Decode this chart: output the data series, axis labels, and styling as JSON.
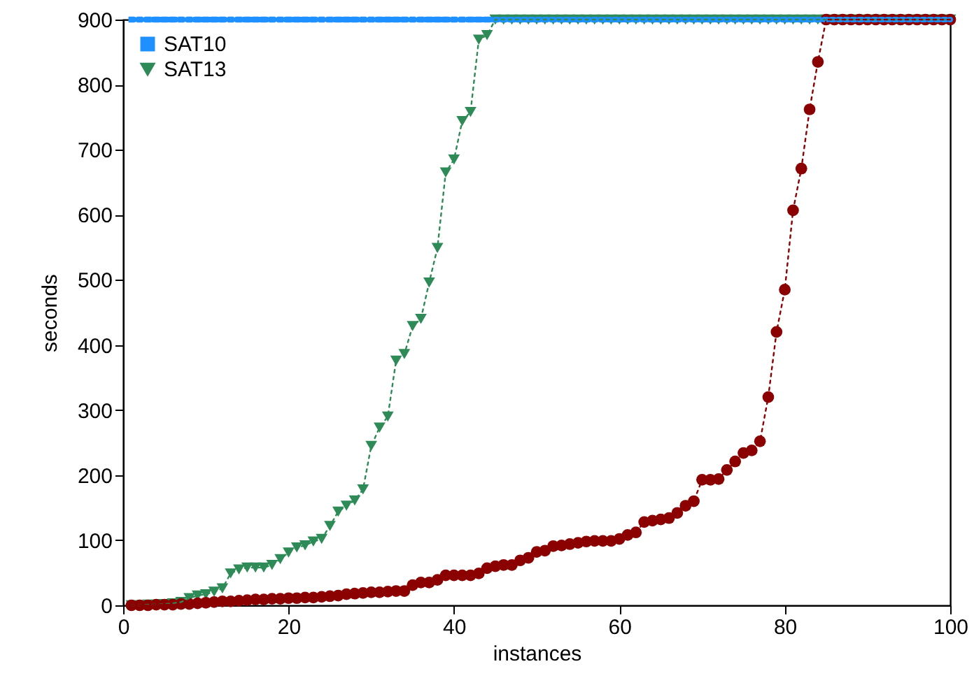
{
  "chart_data": {
    "type": "line",
    "xlabel": "instances",
    "ylabel": "seconds",
    "x": [
      1,
      2,
      3,
      4,
      5,
      6,
      7,
      8,
      9,
      10,
      11,
      12,
      13,
      14,
      15,
      16,
      17,
      18,
      19,
      20,
      21,
      22,
      23,
      24,
      25,
      26,
      27,
      28,
      29,
      30,
      31,
      32,
      33,
      34,
      35,
      36,
      37,
      38,
      39,
      40,
      41,
      42,
      43,
      44,
      45,
      46,
      47,
      48,
      49,
      50,
      51,
      52,
      53,
      54,
      55,
      56,
      57,
      58,
      59,
      60,
      61,
      62,
      63,
      64,
      65,
      66,
      67,
      68,
      69,
      70,
      71,
      72,
      73,
      74,
      75,
      76,
      77,
      78,
      79,
      80,
      81,
      82,
      83,
      84,
      85,
      86,
      87,
      88,
      89,
      90,
      91,
      92,
      93,
      94,
      95,
      96,
      97,
      98,
      99,
      100
    ],
    "xlim": [
      0,
      100
    ],
    "xticks": [
      0,
      20,
      40,
      60,
      80,
      100
    ],
    "ylim": [
      0,
      900
    ],
    "yticks": [
      0,
      100,
      200,
      300,
      400,
      500,
      600,
      700,
      800,
      900
    ],
    "grid": false,
    "legend": "top left",
    "line_style": "dotted",
    "series": [
      {
        "name": "SAT10",
        "color": "#1e90ff",
        "marker": "square",
        "values": [
          900,
          900,
          900,
          900,
          900,
          900,
          900,
          900,
          900,
          900,
          900,
          900,
          900,
          900,
          900,
          900,
          900,
          900,
          900,
          900,
          900,
          900,
          900,
          900,
          900,
          900,
          900,
          900,
          900,
          900,
          900,
          900,
          900,
          900,
          900,
          900,
          900,
          900,
          900,
          900,
          900,
          900,
          900,
          900,
          900,
          900,
          900,
          900,
          900,
          900,
          900,
          900,
          900,
          900,
          900,
          900,
          900,
          900,
          900,
          900,
          900,
          900,
          900,
          900,
          900,
          900,
          900,
          900,
          900,
          900,
          900,
          900,
          900,
          900,
          900,
          900,
          900,
          900,
          900,
          900,
          900,
          900,
          900,
          900,
          900,
          900,
          900,
          900,
          900,
          900,
          900,
          900,
          900,
          900,
          900,
          900,
          900,
          900,
          900,
          900
        ]
      },
      {
        "name": "SAT13",
        "color": "#2e8b57",
        "marker": "triangle",
        "values": [
          0,
          0,
          1,
          1,
          2,
          3,
          5,
          11,
          15,
          17,
          21,
          26,
          49,
          55,
          58,
          58,
          58,
          62,
          71,
          81,
          89,
          92,
          98,
          102,
          122,
          144,
          153,
          161,
          178,
          245,
          273,
          290,
          376,
          386,
          429,
          440,
          496,
          549,
          665,
          685,
          744,
          758,
          869,
          876,
          900,
          900,
          900,
          900,
          900,
          900,
          900,
          900,
          900,
          900,
          900,
          900,
          900,
          900,
          900,
          900,
          900,
          900,
          900,
          900,
          900,
          900,
          900,
          900,
          900,
          900,
          900,
          900,
          900,
          900,
          900,
          900,
          900,
          900,
          900,
          900,
          900,
          900,
          900,
          900,
          900,
          900,
          900,
          900,
          900,
          900,
          900,
          900,
          900,
          900,
          900,
          900,
          900,
          900,
          900,
          900
        ]
      },
      {
        "color": "#8b0000",
        "marker": "circle",
        "values": [
          0,
          0,
          0,
          1,
          1,
          1,
          2,
          2,
          3,
          4,
          5,
          6,
          6,
          7,
          8,
          9,
          9,
          10,
          10,
          11,
          11,
          12,
          12,
          13,
          14,
          15,
          17,
          18,
          19,
          20,
          20,
          21,
          22,
          22,
          31,
          35,
          35,
          39,
          46,
          46,
          46,
          46,
          49,
          57,
          60,
          62,
          62,
          69,
          73,
          82,
          84,
          91,
          92,
          94,
          96,
          98,
          99,
          99,
          99,
          102,
          108,
          112,
          128,
          130,
          132,
          134,
          142,
          153,
          160,
          193,
          193,
          194,
          208,
          221,
          234,
          238,
          252,
          320,
          420,
          485,
          607,
          671,
          762,
          835,
          900,
          900,
          900,
          900,
          900,
          900,
          900,
          900,
          900,
          900,
          900,
          900,
          900,
          900,
          900,
          900
        ]
      }
    ]
  }
}
